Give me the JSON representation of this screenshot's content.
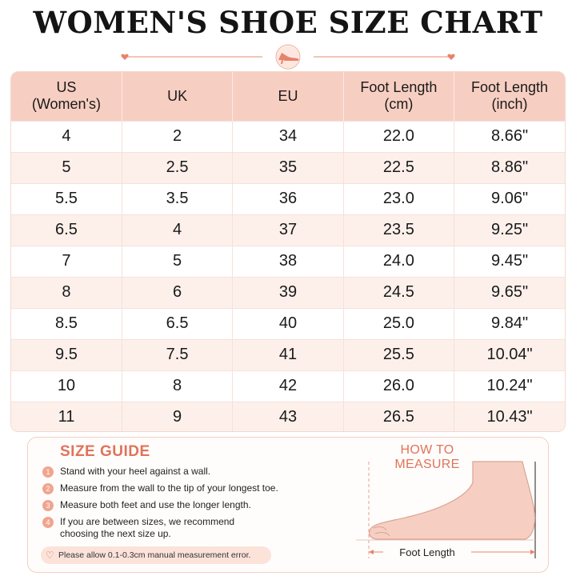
{
  "title": "WOMEN'S SHOE SIZE CHART",
  "table": {
    "headers": [
      {
        "line1": "US",
        "line2": "(Women's)"
      },
      {
        "line1": "UK",
        "line2": ""
      },
      {
        "line1": "EU",
        "line2": ""
      },
      {
        "line1": "Foot Length",
        "line2": "(cm)"
      },
      {
        "line1": "Foot Length",
        "line2": "(inch)"
      }
    ],
    "rows": [
      [
        "4",
        "2",
        "34",
        "22.0",
        "8.66\""
      ],
      [
        "5",
        "2.5",
        "35",
        "22.5",
        "8.86\""
      ],
      [
        "5.5",
        "3.5",
        "36",
        "23.0",
        "9.06\""
      ],
      [
        "6.5",
        "4",
        "37",
        "23.5",
        "9.25\""
      ],
      [
        "7",
        "5",
        "38",
        "24.0",
        "9.45\""
      ],
      [
        "8",
        "6",
        "39",
        "24.5",
        "9.65\""
      ],
      [
        "8.5",
        "6.5",
        "40",
        "25.0",
        "9.84\""
      ],
      [
        "9.5",
        "7.5",
        "41",
        "25.5",
        "10.04\""
      ],
      [
        "10",
        "8",
        "42",
        "26.0",
        "10.24\""
      ],
      [
        "11",
        "9",
        "43",
        "26.5",
        "10.43\""
      ]
    ]
  },
  "guide": {
    "title": "SIZE GUIDE",
    "steps": [
      {
        "num": "1",
        "text": "Stand with your heel against a wall."
      },
      {
        "num": "2",
        "text": "Measure from the wall to the tip of your longest toe."
      },
      {
        "num": "3",
        "text": "Measure both feet and use the longer length."
      },
      {
        "num": "4",
        "text": "If you are between sizes, we recommend choosing the next size up."
      }
    ],
    "note": "Please allow 0.1-0.3cm manual measurement error.",
    "how_to_title": "HOW TO MEASURE",
    "foot_label": "Foot Length"
  },
  "colors": {
    "header_bg": "#f7cfc2",
    "accent": "#e0735a",
    "row_alt": "#fdf0eb"
  }
}
